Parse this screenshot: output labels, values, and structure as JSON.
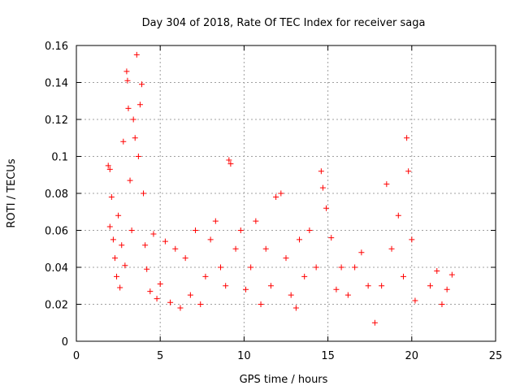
{
  "chart_data": {
    "type": "scatter",
    "title": "Day 304 of 2018, Rate Of TEC Index for receiver saga",
    "xlabel": "GPS time / hours",
    "ylabel": "ROTI / TECUs",
    "xlim": [
      0,
      25
    ],
    "ylim": [
      0,
      0.16
    ],
    "xticks": [
      0,
      5,
      10,
      15,
      20,
      25
    ],
    "xtick_labels": [
      "0",
      "5",
      "10",
      "15",
      "20",
      "25"
    ],
    "yticks": [
      0,
      0.02,
      0.04,
      0.06,
      0.08,
      0.1,
      0.12,
      0.14,
      0.16
    ],
    "ytick_labels": [
      "0",
      "0.02",
      "0.04",
      "0.06",
      "0.08",
      "0.1",
      "0.12",
      "0.14",
      "0.16"
    ],
    "grid": true,
    "marker": "+",
    "color": "#ff0000",
    "series": [
      {
        "name": "ROTI",
        "points": [
          [
            1.9,
            0.095
          ],
          [
            2.0,
            0.093
          ],
          [
            2.0,
            0.062
          ],
          [
            2.1,
            0.078
          ],
          [
            2.2,
            0.055
          ],
          [
            2.3,
            0.045
          ],
          [
            2.4,
            0.035
          ],
          [
            2.5,
            0.068
          ],
          [
            2.6,
            0.029
          ],
          [
            2.7,
            0.052
          ],
          [
            2.8,
            0.108
          ],
          [
            2.9,
            0.041
          ],
          [
            3.0,
            0.146
          ],
          [
            3.05,
            0.141
          ],
          [
            3.1,
            0.126
          ],
          [
            3.2,
            0.087
          ],
          [
            3.3,
            0.06
          ],
          [
            3.4,
            0.12
          ],
          [
            3.5,
            0.11
          ],
          [
            3.6,
            0.155
          ],
          [
            3.7,
            0.1
          ],
          [
            3.8,
            0.128
          ],
          [
            3.9,
            0.139
          ],
          [
            4.0,
            0.08
          ],
          [
            4.1,
            0.052
          ],
          [
            4.2,
            0.039
          ],
          [
            4.4,
            0.027
          ],
          [
            4.6,
            0.058
          ],
          [
            4.8,
            0.023
          ],
          [
            5.0,
            0.031
          ],
          [
            5.3,
            0.054
          ],
          [
            5.6,
            0.021
          ],
          [
            5.9,
            0.05
          ],
          [
            6.2,
            0.018
          ],
          [
            6.5,
            0.045
          ],
          [
            6.8,
            0.025
          ],
          [
            7.1,
            0.06
          ],
          [
            7.4,
            0.02
          ],
          [
            7.7,
            0.035
          ],
          [
            8.0,
            0.055
          ],
          [
            8.3,
            0.065
          ],
          [
            8.6,
            0.04
          ],
          [
            8.9,
            0.03
          ],
          [
            9.1,
            0.098
          ],
          [
            9.2,
            0.096
          ],
          [
            9.5,
            0.05
          ],
          [
            9.8,
            0.06
          ],
          [
            10.1,
            0.028
          ],
          [
            10.4,
            0.04
          ],
          [
            10.7,
            0.065
          ],
          [
            11.0,
            0.02
          ],
          [
            11.3,
            0.05
          ],
          [
            11.6,
            0.03
          ],
          [
            11.9,
            0.078
          ],
          [
            12.2,
            0.08
          ],
          [
            12.5,
            0.045
          ],
          [
            12.8,
            0.025
          ],
          [
            13.1,
            0.018
          ],
          [
            13.3,
            0.055
          ],
          [
            13.6,
            0.035
          ],
          [
            13.9,
            0.06
          ],
          [
            14.3,
            0.04
          ],
          [
            14.6,
            0.092
          ],
          [
            14.7,
            0.083
          ],
          [
            14.9,
            0.072
          ],
          [
            15.2,
            0.056
          ],
          [
            15.5,
            0.028
          ],
          [
            15.8,
            0.04
          ],
          [
            16.2,
            0.025
          ],
          [
            16.6,
            0.04
          ],
          [
            17.0,
            0.048
          ],
          [
            17.4,
            0.03
          ],
          [
            17.8,
            0.01
          ],
          [
            18.2,
            0.03
          ],
          [
            18.5,
            0.085
          ],
          [
            18.8,
            0.05
          ],
          [
            19.2,
            0.068
          ],
          [
            19.5,
            0.035
          ],
          [
            19.7,
            0.11
          ],
          [
            19.8,
            0.092
          ],
          [
            20.0,
            0.055
          ],
          [
            20.2,
            0.022
          ],
          [
            21.1,
            0.03
          ],
          [
            21.5,
            0.038
          ],
          [
            21.8,
            0.02
          ],
          [
            22.1,
            0.028
          ],
          [
            22.4,
            0.036
          ]
        ]
      }
    ]
  }
}
